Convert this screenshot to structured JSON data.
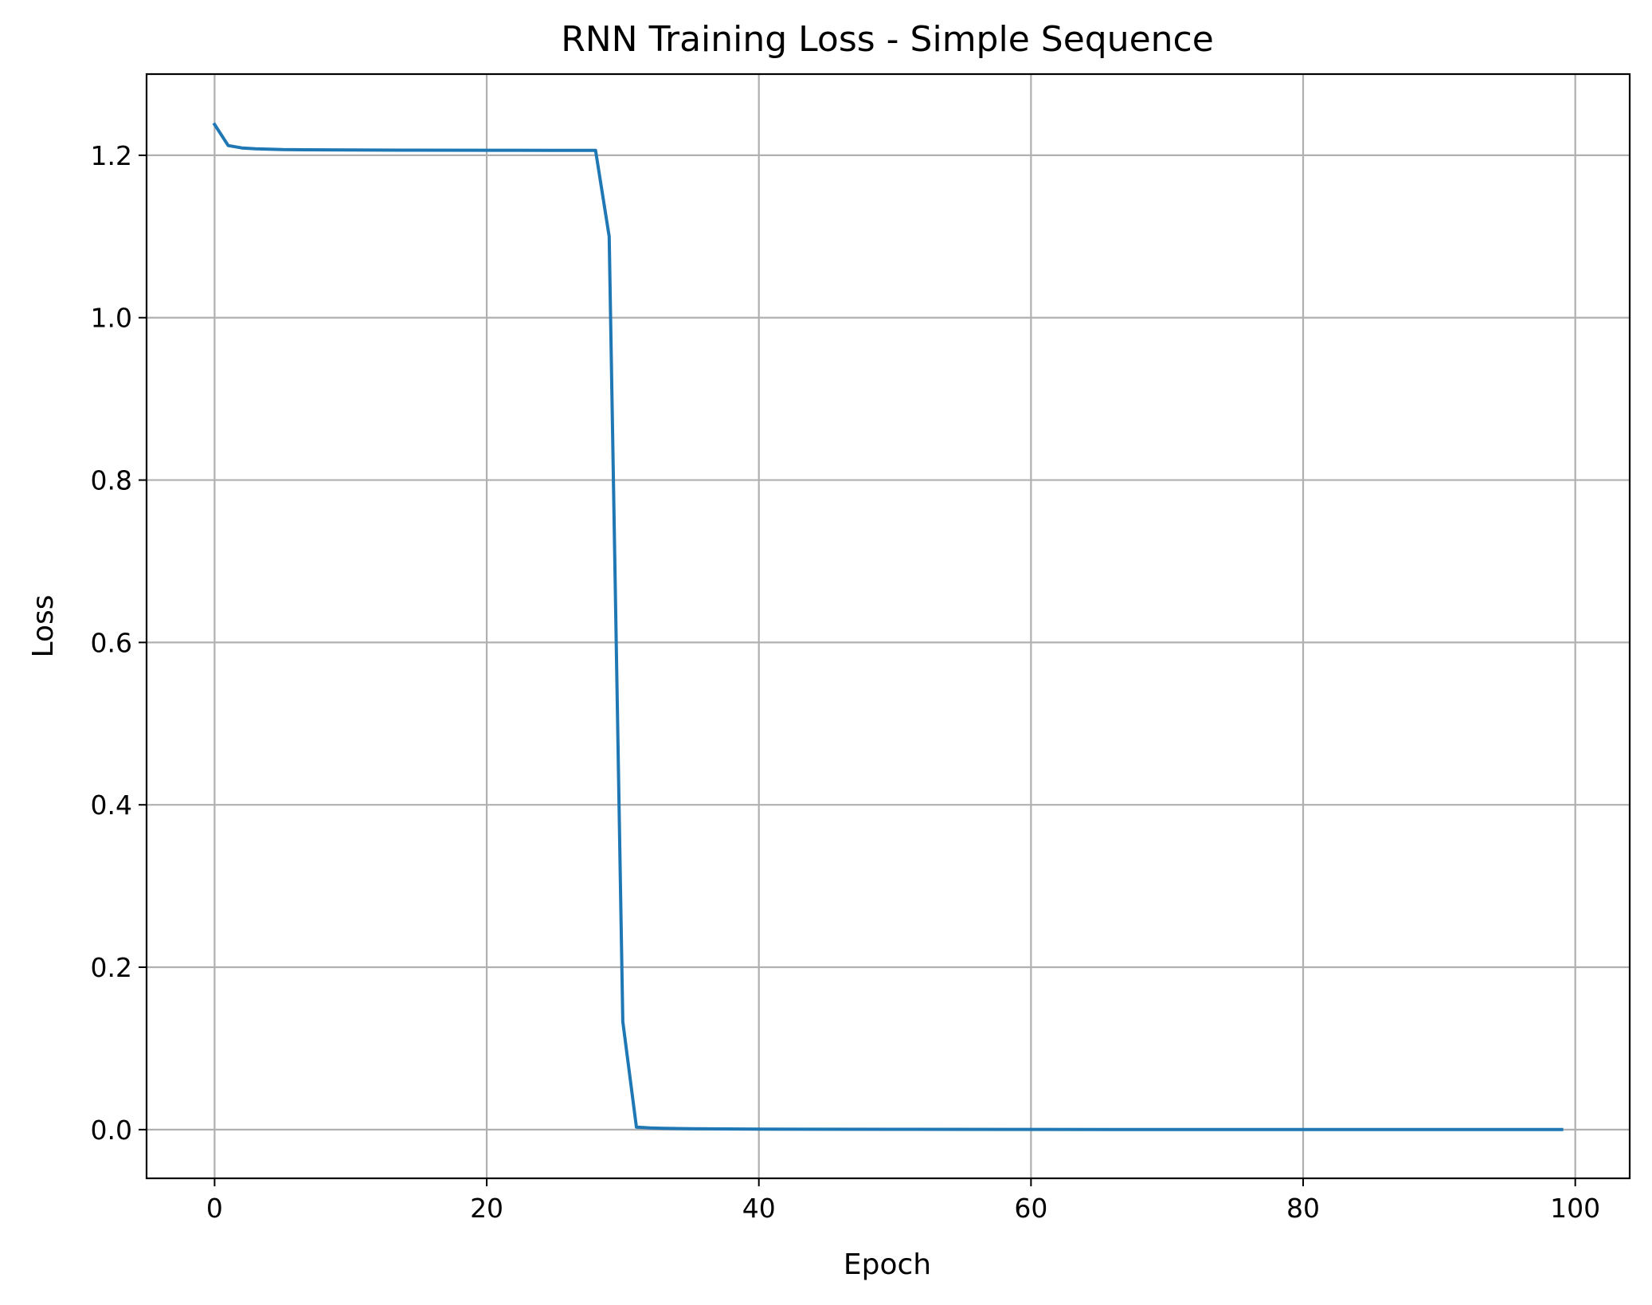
{
  "chart_data": {
    "type": "line",
    "title": "RNN Training Loss - Simple Sequence",
    "xlabel": "Epoch",
    "ylabel": "Loss",
    "xlim": [
      -5,
      104
    ],
    "ylim": [
      -0.06,
      1.3
    ],
    "x_ticks": [
      0,
      20,
      40,
      60,
      80,
      100
    ],
    "x_tick_labels": [
      "0",
      "20",
      "40",
      "60",
      "80",
      "100"
    ],
    "y_ticks": [
      0.0,
      0.2,
      0.4,
      0.6,
      0.8,
      1.0,
      1.2
    ],
    "y_tick_labels": [
      "0.0",
      "0.2",
      "0.4",
      "0.6",
      "0.8",
      "1.0",
      "1.2"
    ],
    "grid": true,
    "series": [
      {
        "color": "#1f77b4",
        "x": [
          0,
          1,
          2,
          3,
          4,
          5,
          10,
          15,
          20,
          25,
          28,
          29,
          30,
          31,
          32,
          33,
          35,
          40,
          50,
          60,
          70,
          80,
          90,
          99
        ],
        "y": [
          1.238,
          1.212,
          1.209,
          1.208,
          1.2075,
          1.207,
          1.2065,
          1.2063,
          1.2062,
          1.2061,
          1.206,
          1.1,
          0.133,
          0.003,
          0.002,
          0.0015,
          0.001,
          0.0005,
          0.0003,
          0.0002,
          0.0001,
          0.0001,
          0.0001,
          0.0001
        ]
      }
    ]
  }
}
